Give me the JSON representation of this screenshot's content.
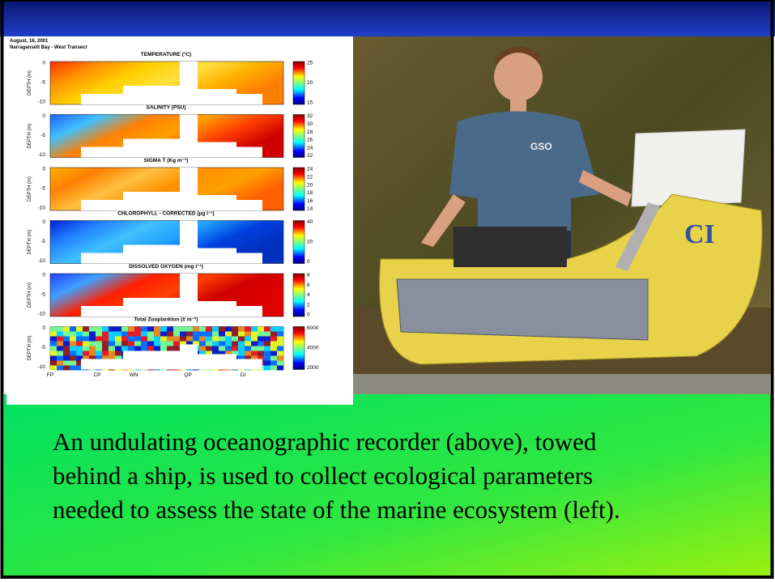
{
  "figure": {
    "date": "August, 16, 2001",
    "transect": "Narragansett Bay - West Transect",
    "panels": [
      {
        "title": "TEMPERATURE (°C)",
        "y_label": "DEPTH (m)",
        "depth_ticks": [
          "0",
          "-5",
          "-10"
        ],
        "colorbar_ticks": [
          "25",
          "20",
          "15"
        ]
      },
      {
        "title": "SALINITY (PSU)",
        "y_label": "DEPTH (m)",
        "depth_ticks": [
          "0",
          "-5",
          "-10"
        ],
        "colorbar_ticks": [
          "32",
          "30",
          "28",
          "26",
          "24",
          "22"
        ]
      },
      {
        "title": "SIGMA T (Kg m⁻³)",
        "y_label": "DEPTH (m)",
        "depth_ticks": [
          "0",
          "-5",
          "-10"
        ],
        "colorbar_ticks": [
          "24",
          "22",
          "20",
          "18",
          "16",
          "14"
        ]
      },
      {
        "title": "CHLOROPHYLL - CORRECTED (µg l⁻¹)",
        "y_label": "DEPTH (m)",
        "depth_ticks": [
          "0",
          "-5",
          "-10"
        ],
        "colorbar_ticks": [
          "40",
          "20",
          "0"
        ]
      },
      {
        "title": "DISSOLVED OXYGEN (mg l⁻¹)",
        "y_label": "DEPTH (m)",
        "depth_ticks": [
          "0",
          "-5",
          "-10"
        ],
        "colorbar_ticks": [
          "8",
          "6",
          "4",
          "2",
          "0"
        ]
      },
      {
        "title": "Total Zooplankton (# m⁻³)",
        "y_label": "DEPTH (m)",
        "depth_ticks": [
          "0",
          "-5",
          "-10"
        ],
        "colorbar_ticks": [
          "6000",
          "4000",
          "2000"
        ]
      }
    ],
    "x_labels": [
      "FP",
      "CP",
      "WN",
      "QP",
      "DI"
    ]
  },
  "caption": {
    "lines": [
      "An undulating oceanographic recorder (above), towed",
      "behind a ship, is used to collect ecological parameters",
      "needed to assess the state of  the marine ecosystem (left)."
    ]
  }
}
